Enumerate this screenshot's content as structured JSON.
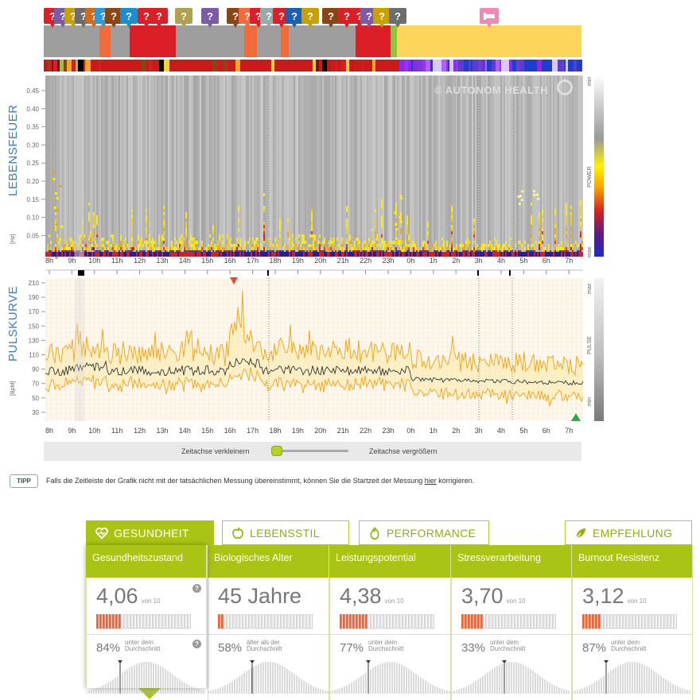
{
  "brand": "© AUTONOM HEALTH",
  "panels": {
    "spectrum": {
      "title": "LEBENSFEUER",
      "unit": "[Hz]",
      "yticks": [
        "0.45",
        "0.40",
        "0.35",
        "0.30",
        "0.25",
        "0.20",
        "0.15",
        "0.10",
        "0.05"
      ],
      "legend_title": "POWER",
      "legend_min": "min",
      "legend_max": "max"
    },
    "pulse": {
      "title": "PULSKURVE",
      "unit": "[BpM]",
      "yticks": [
        "210",
        "190",
        "170",
        "150",
        "130",
        "110",
        "90",
        "70",
        "50",
        "30"
      ],
      "legend_title": "PULSE",
      "legend_min": "min",
      "legend_max": "max"
    }
  },
  "hours": [
    "8h",
    "9h",
    "10h",
    "11h",
    "12h",
    "13h",
    "14h",
    "15h",
    "16h",
    "17h",
    "18h",
    "19h",
    "20h",
    "21h",
    "22h",
    "23h",
    "0h",
    "1h",
    "2h",
    "3h",
    "4h",
    "5h",
    "6h",
    "7h"
  ],
  "zoom": {
    "smaller": "Zeitachse verkleinern",
    "larger": "Zeitachse vergrößern"
  },
  "tip": {
    "badge": "TIPP",
    "text": "Falls die Zeitleiste der Grafik nicht mit der tatsächlichen Messung übereinstimmt, können Sie die Startzeit der Messung",
    "link": "hier",
    "suffix": "korrigieren."
  },
  "tabs": [
    {
      "label": "GESUNDHEIT",
      "icon": "heart-pulse-icon",
      "active": true
    },
    {
      "label": "LEBENSSTIL",
      "icon": "apple-icon",
      "active": false
    },
    {
      "label": "PERFORMANCE",
      "icon": "flame-icon",
      "active": false
    },
    {
      "label": "EMPFEHLUNG",
      "icon": "leaf-icon",
      "active": false
    }
  ],
  "metrics": [
    {
      "title": "Gesundheitszustand",
      "value": "4,06",
      "unit": "von 10",
      "bars_filled": 8,
      "percent": "84%",
      "desc": [
        "unter dem",
        "Durchschnitt"
      ]
    },
    {
      "title": "Biologisches Alter",
      "value": "45 Jahre",
      "unit": "",
      "bars_filled": 2,
      "percent": "58%",
      "desc": [
        "älter als der",
        "Durchschnitt"
      ]
    },
    {
      "title": "Leistungspotential",
      "value": "4,38",
      "unit": "von 10",
      "bars_filled": 9,
      "percent": "77%",
      "desc": [
        "unter dem",
        "Durchschnitt"
      ]
    },
    {
      "title": "Stressverarbeitung",
      "value": "3,70",
      "unit": "von 10",
      "bars_filled": 7,
      "percent": "33%",
      "desc": [
        "unter dem",
        "Durchschnitt"
      ]
    },
    {
      "title": "Burnout Resistenz",
      "value": "3,12",
      "unit": "von 10",
      "bars_filled": 6,
      "percent": "87%",
      "desc": [
        "unter dem",
        "Durchschnitt"
      ]
    }
  ],
  "colors": {
    "accent": "#a9c414",
    "bar_filled": "#e8663c",
    "brand_blue": "#3a7cc0",
    "pulse_line": "#f3a81f"
  }
}
